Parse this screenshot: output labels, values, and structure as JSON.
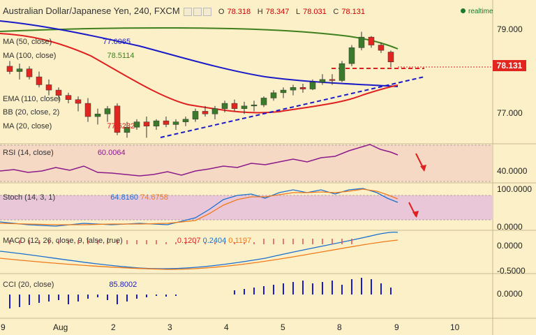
{
  "header": {
    "symbol": "Australian Dollar/Japanese Yen, 240, FXCM",
    "o_label": "O",
    "o": "78.318",
    "h_label": "H",
    "h": "78.347",
    "l_label": "L",
    "l": "78.031",
    "c_label": "C",
    "c": "78.131",
    "realtime": "realtime"
  },
  "price_tag": "78.131",
  "price_axis": [
    "79.000",
    "78.000",
    "77.000"
  ],
  "rsi_axis": [
    "40.0000"
  ],
  "stoch_axis": [
    "100.0000",
    "0.0000"
  ],
  "macd_axis": [
    "0.0000",
    "-0.5000"
  ],
  "cci_axis": [
    "0.0000"
  ],
  "x_axis": [
    "9",
    "Aug",
    "2",
    "3",
    "4",
    "5",
    "8",
    "9",
    "10"
  ],
  "indicators": {
    "ma50": {
      "name": "MA (50, close)",
      "value": "77.6065"
    },
    "ma100": {
      "name": "MA (100, close)",
      "value": "78.5114"
    },
    "ema110": {
      "name": "EMA (110, close)"
    },
    "bb": {
      "name": "BB (20, close, 2)"
    },
    "ma20": {
      "name": "MA (20, close)",
      "value": "77.6232"
    },
    "rsi": {
      "name": "RSI (14, close)",
      "value": "60.0064"
    },
    "stoch": {
      "name": "Stoch (14, 3, 1)",
      "k": "64.8160",
      "d": "74.6758"
    },
    "macd": {
      "name": "MACD (12, 26, close, 9, false, true)",
      "hist": "0.1207",
      "macd": "0.2404",
      "signal": "0.1197"
    },
    "cci": {
      "name": "CCI (20, close)",
      "value": "85.8002"
    }
  },
  "colors": {
    "bull": "#3a7a2a",
    "bear": "#e0261e",
    "ma_green": "#3f7f1e",
    "ma_blue": "#1a1ac8",
    "ma_red": "#e02020",
    "rsi": "#8b1a8b"
  },
  "chart_data": {
    "type": "candlestick",
    "candles": [
      {
        "o": 78.05,
        "h": 78.15,
        "l": 77.9,
        "c": 77.95
      },
      {
        "o": 77.95,
        "h": 78.1,
        "l": 77.8,
        "c": 78.0
      },
      {
        "o": 78.0,
        "h": 78.05,
        "l": 77.8,
        "c": 77.85
      },
      {
        "o": 77.85,
        "h": 77.95,
        "l": 77.65,
        "c": 77.7
      },
      {
        "o": 77.7,
        "h": 77.8,
        "l": 77.5,
        "c": 77.6
      },
      {
        "o": 77.6,
        "h": 77.65,
        "l": 77.4,
        "c": 77.5
      },
      {
        "o": 77.5,
        "h": 77.55,
        "l": 77.35,
        "c": 77.42
      },
      {
        "o": 77.42,
        "h": 77.48,
        "l": 77.2,
        "c": 77.35
      },
      {
        "o": 77.35,
        "h": 77.45,
        "l": 77.0,
        "c": 77.1
      },
      {
        "o": 77.1,
        "h": 77.25,
        "l": 76.95,
        "c": 77.15
      },
      {
        "o": 77.15,
        "h": 77.3,
        "l": 77.0,
        "c": 77.25
      },
      {
        "o": 77.3,
        "h": 77.35,
        "l": 76.75,
        "c": 76.8
      },
      {
        "o": 76.8,
        "h": 77.0,
        "l": 76.7,
        "c": 76.9
      },
      {
        "o": 76.9,
        "h": 77.05,
        "l": 76.85,
        "c": 77.0
      },
      {
        "o": 77.0,
        "h": 77.1,
        "l": 76.7,
        "c": 76.92
      },
      {
        "o": 76.92,
        "h": 77.05,
        "l": 76.85,
        "c": 77.02
      },
      {
        "o": 77.02,
        "h": 77.1,
        "l": 76.9,
        "c": 76.95
      },
      {
        "o": 76.95,
        "h": 77.05,
        "l": 76.85,
        "c": 77.0
      },
      {
        "o": 77.0,
        "h": 77.1,
        "l": 76.92,
        "c": 77.05
      },
      {
        "o": 77.05,
        "h": 77.25,
        "l": 77.0,
        "c": 77.2
      },
      {
        "o": 77.2,
        "h": 77.3,
        "l": 77.1,
        "c": 77.15
      },
      {
        "o": 77.15,
        "h": 77.3,
        "l": 77.05,
        "c": 77.25
      },
      {
        "o": 77.25,
        "h": 77.4,
        "l": 77.18,
        "c": 77.35
      },
      {
        "o": 77.35,
        "h": 77.42,
        "l": 77.2,
        "c": 77.25
      },
      {
        "o": 77.25,
        "h": 77.38,
        "l": 77.15,
        "c": 77.3
      },
      {
        "o": 77.3,
        "h": 77.4,
        "l": 77.2,
        "c": 77.32
      },
      {
        "o": 77.32,
        "h": 77.48,
        "l": 77.28,
        "c": 77.45
      },
      {
        "o": 77.45,
        "h": 77.6,
        "l": 77.4,
        "c": 77.55
      },
      {
        "o": 77.55,
        "h": 77.65,
        "l": 77.45,
        "c": 77.6
      },
      {
        "o": 77.6,
        "h": 77.7,
        "l": 77.5,
        "c": 77.65
      },
      {
        "o": 77.65,
        "h": 77.72,
        "l": 77.55,
        "c": 77.62
      },
      {
        "o": 77.62,
        "h": 77.8,
        "l": 77.6,
        "c": 77.75
      },
      {
        "o": 77.75,
        "h": 77.9,
        "l": 77.7,
        "c": 77.8
      },
      {
        "o": 77.8,
        "h": 77.9,
        "l": 77.7,
        "c": 77.78
      },
      {
        "o": 77.78,
        "h": 78.15,
        "l": 77.75,
        "c": 78.1
      },
      {
        "o": 78.1,
        "h": 78.45,
        "l": 78.05,
        "c": 78.4
      },
      {
        "o": 78.4,
        "h": 78.7,
        "l": 78.35,
        "c": 78.6
      },
      {
        "o": 78.6,
        "h": 78.62,
        "l": 78.4,
        "c": 78.45
      },
      {
        "o": 78.45,
        "h": 78.5,
        "l": 78.3,
        "c": 78.35
      },
      {
        "o": 78.318,
        "h": 78.347,
        "l": 78.031,
        "c": 78.131
      }
    ],
    "ylim": [
      76.6,
      79.3
    ],
    "x_ticks": [
      "9",
      "Aug",
      "2",
      "3",
      "4",
      "5",
      "8",
      "9",
      "10"
    ]
  }
}
